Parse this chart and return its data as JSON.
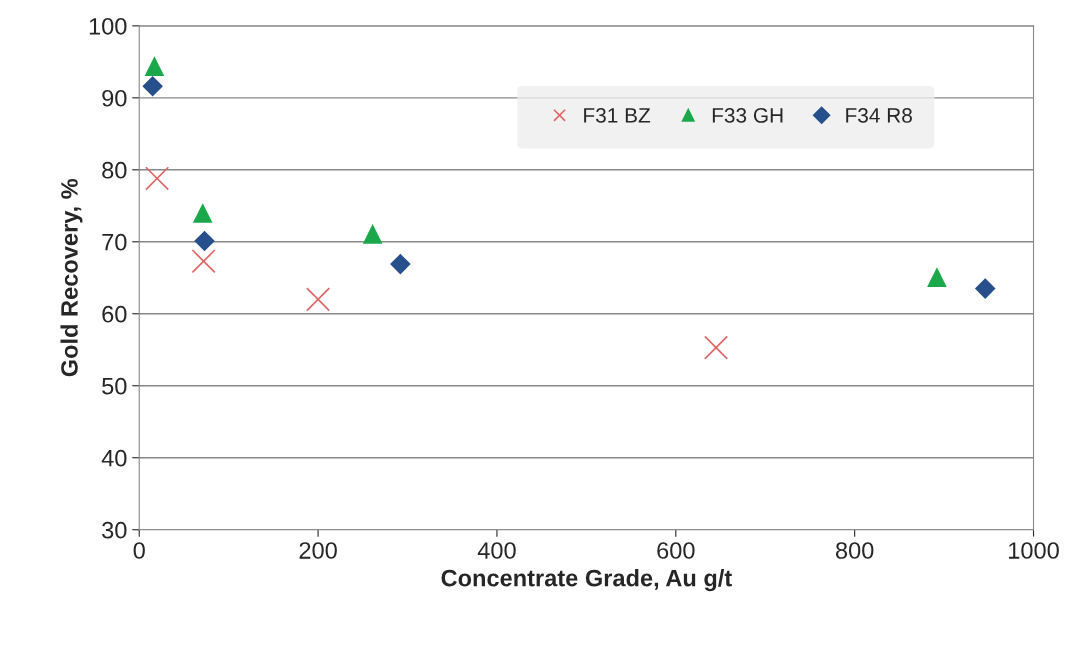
{
  "chart_data": {
    "type": "scatter",
    "xlabel": "Concentrate Grade, Au g/t",
    "ylabel": "Gold Recovery, %",
    "xlim": [
      0,
      1000
    ],
    "xticks": [
      0,
      200,
      400,
      600,
      800,
      1000
    ],
    "ylim": [
      30,
      100
    ],
    "yticks": [
      30,
      40,
      50,
      60,
      70,
      80,
      90,
      100
    ],
    "grid": "y",
    "legend": "top right",
    "series": [
      {
        "name": "F31 BZ",
        "color": "#e06666",
        "marker": "cross",
        "x": [
          20,
          72,
          200,
          645
        ],
        "values": [
          78.8,
          67.3,
          62.0,
          55.3
        ]
      },
      {
        "name": "F33 GH",
        "color": "#1aa84a",
        "marker": "triangle",
        "x": [
          17,
          71,
          261,
          892
        ],
        "values": [
          94.4,
          74.0,
          71.1,
          65.1
        ]
      },
      {
        "name": "F34 R8",
        "color": "#264f8c",
        "marker": "diamond",
        "x": [
          15,
          73,
          292,
          946
        ],
        "values": [
          91.6,
          70.1,
          66.9,
          63.5
        ]
      }
    ]
  }
}
